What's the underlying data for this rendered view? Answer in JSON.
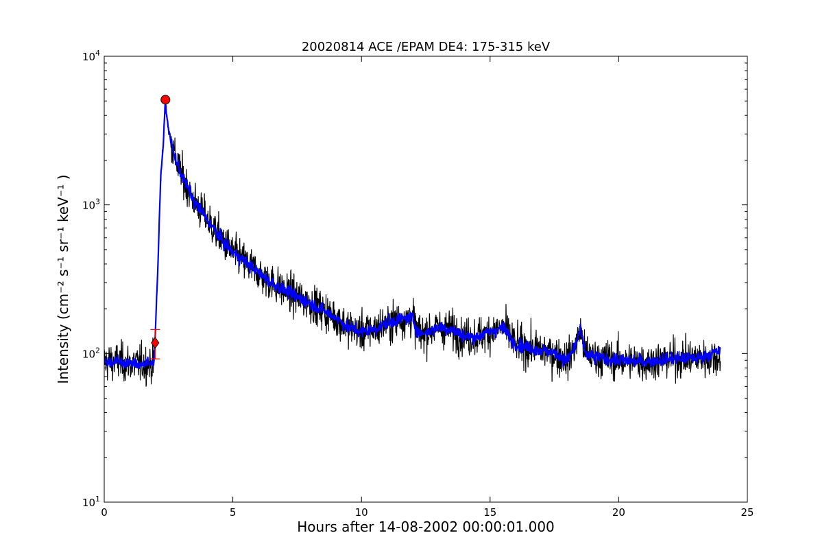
{
  "chart_data": {
    "type": "line",
    "title": "20020814 ACE /EPAM DE4: 175-315 keV",
    "xlabel": "Hours after 14-08-2002 00:00:01.000",
    "ylabel": "Intensity (cm⁻² s⁻¹ sr⁻¹ keV⁻¹ )",
    "xlim": [
      0,
      25
    ],
    "ylim": [
      10,
      10000
    ],
    "yscale": "log",
    "grid": false,
    "x_ticks": [
      0,
      5,
      10,
      15,
      20,
      25
    ],
    "x_tick_labels": [
      "0",
      "5",
      "10",
      "15",
      "20",
      "25"
    ],
    "y_ticks": [
      10,
      100,
      1000,
      10000
    ],
    "y_tick_labels": [
      {
        "base": "10",
        "exp": "1"
      },
      {
        "base": "10",
        "exp": "2"
      },
      {
        "base": "10",
        "exp": "3"
      },
      {
        "base": "10",
        "exp": "4"
      }
    ],
    "series": [
      {
        "role": "raw",
        "color": "#000000",
        "x_range": [
          0,
          23.95
        ],
        "noise": 0.22,
        "profile": [
          [
            0.0,
            88
          ],
          [
            0.5,
            88
          ],
          [
            1.0,
            86
          ],
          [
            1.5,
            85
          ],
          [
            1.9,
            85
          ],
          [
            1.95,
            95
          ],
          [
            2.0,
            160
          ],
          [
            2.1,
            450
          ],
          [
            2.15,
            900
          ],
          [
            2.2,
            1600
          ],
          [
            2.3,
            2600
          ],
          [
            2.37,
            4900
          ],
          [
            2.5,
            3200
          ],
          [
            2.7,
            2200
          ],
          [
            3.0,
            1600
          ],
          [
            3.5,
            1050
          ],
          [
            4.0,
            800
          ],
          [
            4.5,
            600
          ],
          [
            5.0,
            480
          ],
          [
            5.5,
            410
          ],
          [
            6.0,
            350
          ],
          [
            6.5,
            300
          ],
          [
            7.0,
            265
          ],
          [
            7.5,
            240
          ],
          [
            8.0,
            220
          ],
          [
            8.5,
            195
          ],
          [
            9.0,
            175
          ],
          [
            9.5,
            150
          ],
          [
            10.0,
            140
          ],
          [
            10.5,
            145
          ],
          [
            11.0,
            160
          ],
          [
            11.5,
            170
          ],
          [
            12.0,
            175
          ],
          [
            12.1,
            150
          ],
          [
            12.3,
            135
          ],
          [
            13.0,
            150
          ],
          [
            13.5,
            145
          ],
          [
            14.0,
            130
          ],
          [
            14.5,
            130
          ],
          [
            15.0,
            140
          ],
          [
            15.5,
            150
          ],
          [
            16.0,
            115
          ],
          [
            17.0,
            105
          ],
          [
            17.5,
            100
          ],
          [
            18.0,
            90
          ],
          [
            18.3,
            110
          ],
          [
            18.5,
            145
          ],
          [
            18.7,
            100
          ],
          [
            19.0,
            95
          ],
          [
            20.0,
            90
          ],
          [
            21.0,
            88
          ],
          [
            22.0,
            92
          ],
          [
            23.0,
            93
          ],
          [
            23.95,
            95
          ]
        ]
      },
      {
        "role": "smoothed",
        "color": "#0000ff",
        "x_range": [
          0,
          23.95
        ],
        "noise": 0.07,
        "profile": [
          [
            0.0,
            88
          ],
          [
            0.5,
            88
          ],
          [
            1.0,
            86
          ],
          [
            1.5,
            85
          ],
          [
            1.9,
            85
          ],
          [
            1.95,
            95
          ],
          [
            2.0,
            160
          ],
          [
            2.1,
            450
          ],
          [
            2.15,
            900
          ],
          [
            2.2,
            1600
          ],
          [
            2.3,
            2600
          ],
          [
            2.37,
            4900
          ],
          [
            2.5,
            3200
          ],
          [
            2.7,
            2200
          ],
          [
            3.0,
            1600
          ],
          [
            3.5,
            1050
          ],
          [
            4.0,
            800
          ],
          [
            4.5,
            600
          ],
          [
            5.0,
            480
          ],
          [
            5.5,
            410
          ],
          [
            6.0,
            350
          ],
          [
            6.5,
            300
          ],
          [
            7.0,
            265
          ],
          [
            7.5,
            240
          ],
          [
            8.0,
            220
          ],
          [
            8.5,
            195
          ],
          [
            9.0,
            175
          ],
          [
            9.5,
            150
          ],
          [
            10.0,
            140
          ],
          [
            10.5,
            145
          ],
          [
            11.0,
            160
          ],
          [
            11.5,
            170
          ],
          [
            12.0,
            175
          ],
          [
            12.1,
            150
          ],
          [
            12.3,
            135
          ],
          [
            13.0,
            150
          ],
          [
            13.5,
            145
          ],
          [
            14.0,
            130
          ],
          [
            14.5,
            130
          ],
          [
            15.0,
            140
          ],
          [
            15.5,
            150
          ],
          [
            16.0,
            115
          ],
          [
            17.0,
            105
          ],
          [
            17.5,
            100
          ],
          [
            18.0,
            90
          ],
          [
            18.3,
            110
          ],
          [
            18.5,
            145
          ],
          [
            18.7,
            100
          ],
          [
            19.0,
            95
          ],
          [
            20.0,
            90
          ],
          [
            21.0,
            88
          ],
          [
            22.0,
            92
          ],
          [
            23.0,
            93
          ],
          [
            24.0,
            105
          ]
        ]
      }
    ],
    "markers": [
      {
        "kind": "peak",
        "shape": "circle",
        "color": "#ff0000",
        "x": 2.38,
        "y": 5100
      },
      {
        "kind": "onset",
        "shape": "diamond",
        "color": "#ff0000",
        "x": 1.98,
        "y": 118
      }
    ],
    "error_bar": {
      "color": "#ff0000",
      "x": 1.98,
      "y_low": 92,
      "y_high": 145
    }
  }
}
